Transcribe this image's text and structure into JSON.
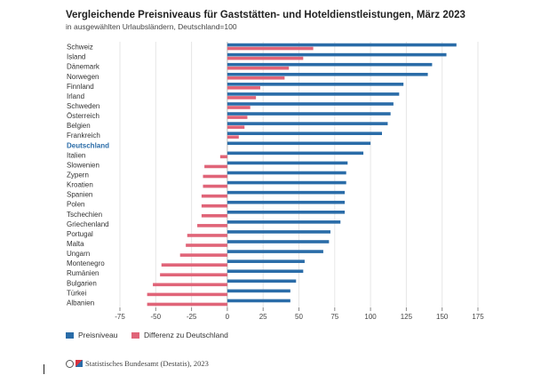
{
  "title": "Vergleichende Preisniveaus für Gaststätten- und Hoteldienstleistungen, März 2023",
  "subtitle": "in ausgewählten Urlaubsländern, Deutschland=100",
  "source": "Statistisches Bundesamt (Destatis), 2023",
  "colors": {
    "preisniveau": "#2a6ca8",
    "differenz": "#e06478",
    "highlight_label": "#2a6ca8",
    "axis": "#888888",
    "grid": "#e6e6e6"
  },
  "legend": {
    "series1": "Preisniveau",
    "series2": "Differenz zu Deutschland"
  },
  "chart_data": {
    "type": "bar",
    "orientation": "horizontal",
    "categories": [
      "Schweiz",
      "Island",
      "Dänemark",
      "Norwegen",
      "Finnland",
      "Irland",
      "Schweden",
      "Österreich",
      "Belgien",
      "Frankreich",
      "Deutschland",
      "Italien",
      "Slowenien",
      "Zypern",
      "Kroatien",
      "Spanien",
      "Polen",
      "Tschechien",
      "Griechenland",
      "Portugal",
      "Malta",
      "Ungarn",
      "Montenegro",
      "Rumänien",
      "Bulgarien",
      "Türkei",
      "Albanien"
    ],
    "highlight_category": "Deutschland",
    "series": [
      {
        "name": "Preisniveau",
        "values": [
          160,
          153,
          143,
          140,
          123,
          120,
          116,
          114,
          112,
          108,
          100,
          95,
          84,
          83,
          83,
          82,
          82,
          82,
          79,
          72,
          71,
          67,
          54,
          53,
          48,
          44,
          44
        ]
      },
      {
        "name": "Differenz zu Deutschland",
        "values": [
          60,
          53,
          43,
          40,
          23,
          20,
          16,
          14,
          12,
          8,
          0,
          -5,
          -16,
          -17,
          -17,
          -18,
          -18,
          -18,
          -21,
          -28,
          -29,
          -33,
          -46,
          -47,
          -52,
          -56,
          -56
        ]
      }
    ],
    "xlim": [
      -75,
      175
    ],
    "xticks": [
      -75,
      -50,
      -25,
      0,
      25,
      50,
      75,
      100,
      125,
      150,
      175
    ],
    "grid": "vertical",
    "legend_position": "bottom-left"
  }
}
